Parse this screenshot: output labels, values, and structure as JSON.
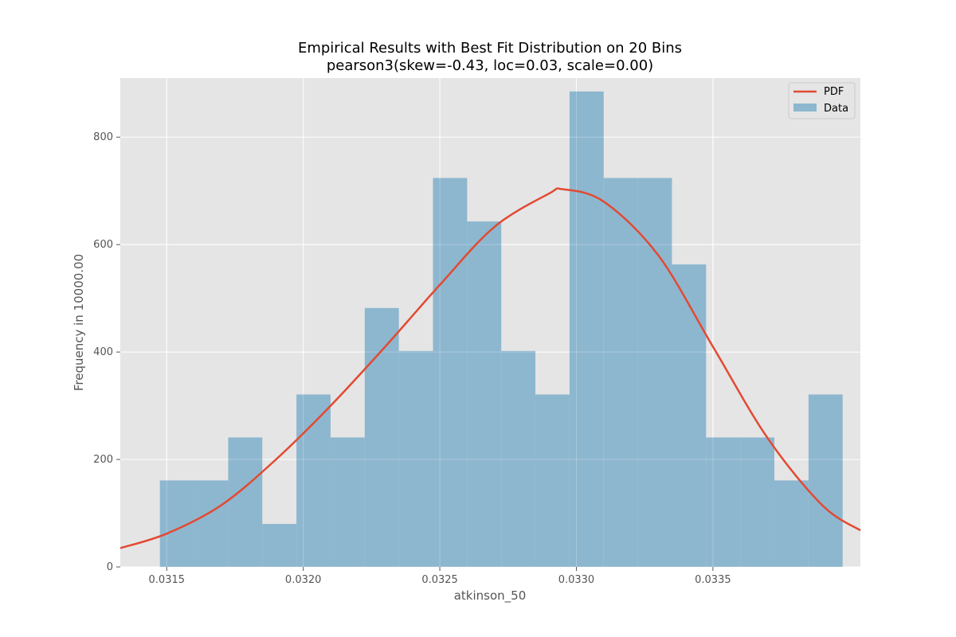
{
  "chart_data": {
    "type": "bar",
    "title": "Empirical Results with Best Fit Distribution on 20 Bins",
    "subtitle": "pearson3(skew=-0.43, loc=0.03, scale=0.00)",
    "xlabel": "atkinson_50",
    "ylabel": "Frequency in 10000.00",
    "xlim": [
      0.03133,
      0.03404
    ],
    "ylim": [
      0,
      910
    ],
    "x_ticks": [
      0.0315,
      0.032,
      0.0325,
      0.033,
      0.0335
    ],
    "x_tick_labels": [
      "0.0315",
      "0.0320",
      "0.0325",
      "0.0330",
      "0.0335"
    ],
    "y_ticks": [
      0,
      200,
      400,
      600,
      800
    ],
    "y_tick_labels": [
      "0",
      "200",
      "400",
      "600",
      "800"
    ],
    "grid": true,
    "legend_position": "top-right",
    "histogram": {
      "name": "Data",
      "color": "#8db7cf",
      "bin_start": 0.031475,
      "bin_width": 0.000125,
      "values": [
        161,
        161,
        241,
        80,
        321,
        241,
        482,
        402,
        724,
        643,
        402,
        321,
        885,
        724,
        724,
        563,
        241,
        241,
        161,
        321
      ]
    },
    "pdf": {
      "name": "PDF",
      "color": "#e24a33",
      "points": [
        [
          0.03133,
          35
        ],
        [
          0.0315,
          62
        ],
        [
          0.0317,
          115
        ],
        [
          0.0319,
          200
        ],
        [
          0.0321,
          300
        ],
        [
          0.0323,
          410
        ],
        [
          0.0325,
          525
        ],
        [
          0.0327,
          633
        ],
        [
          0.0329,
          695
        ],
        [
          0.03295,
          703
        ],
        [
          0.0331,
          680
        ],
        [
          0.0333,
          580
        ],
        [
          0.0335,
          410
        ],
        [
          0.0337,
          240
        ],
        [
          0.0339,
          115
        ],
        [
          0.03404,
          68
        ]
      ]
    }
  }
}
